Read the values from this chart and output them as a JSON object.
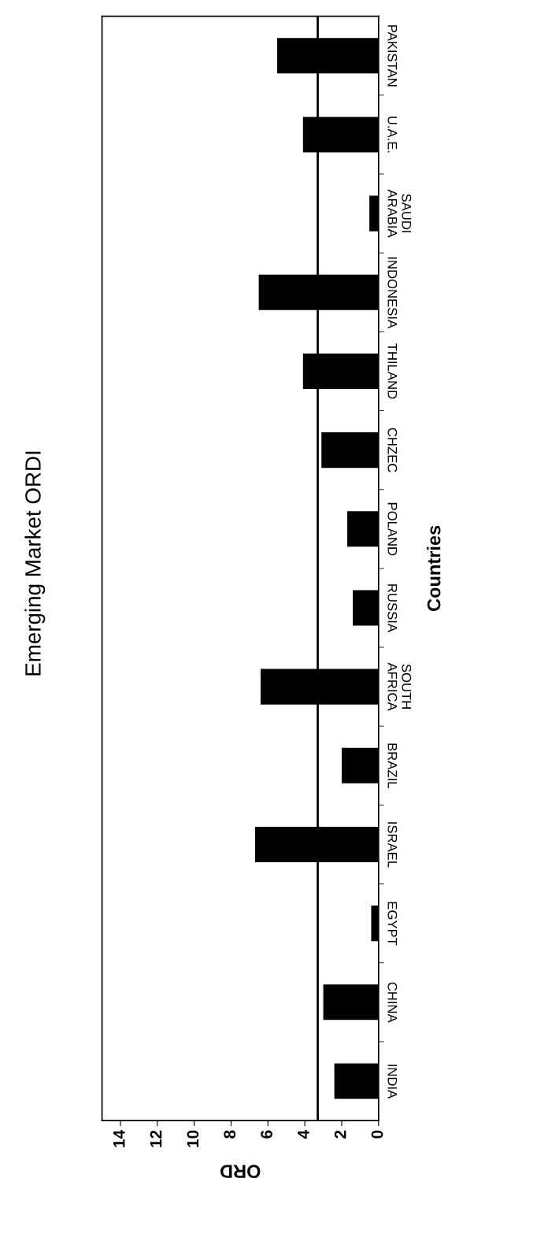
{
  "chart_data": {
    "type": "bar",
    "orientation": "horizontal",
    "title": "Emerging Market ORDI",
    "xlabel": "ORD",
    "ylabel": "Countries",
    "categories": [
      "PAKISTAN",
      "U.A.E.",
      "SAUDI\nARABIA",
      "INDONESIA",
      "THILAND",
      "CHZEC",
      "POLAND",
      "RUSSIA",
      "SOUTH\nAFRICA",
      "BRAZIL",
      "ISRAEL",
      "EGYPT",
      "CHINA",
      "INDIA"
    ],
    "values": [
      5.5,
      4.1,
      0.5,
      6.5,
      4.1,
      3.1,
      1.7,
      1.4,
      6.4,
      2.0,
      6.7,
      0.4,
      3.0,
      2.4
    ],
    "color": "#000000",
    "xlim": [
      15,
      0
    ],
    "xticks": [
      0,
      2,
      4,
      6,
      8,
      10,
      12,
      14
    ],
    "ref_lines": [
      {
        "axis": "x",
        "value": 3.3,
        "color": "#000000"
      }
    ],
    "grid": false
  }
}
